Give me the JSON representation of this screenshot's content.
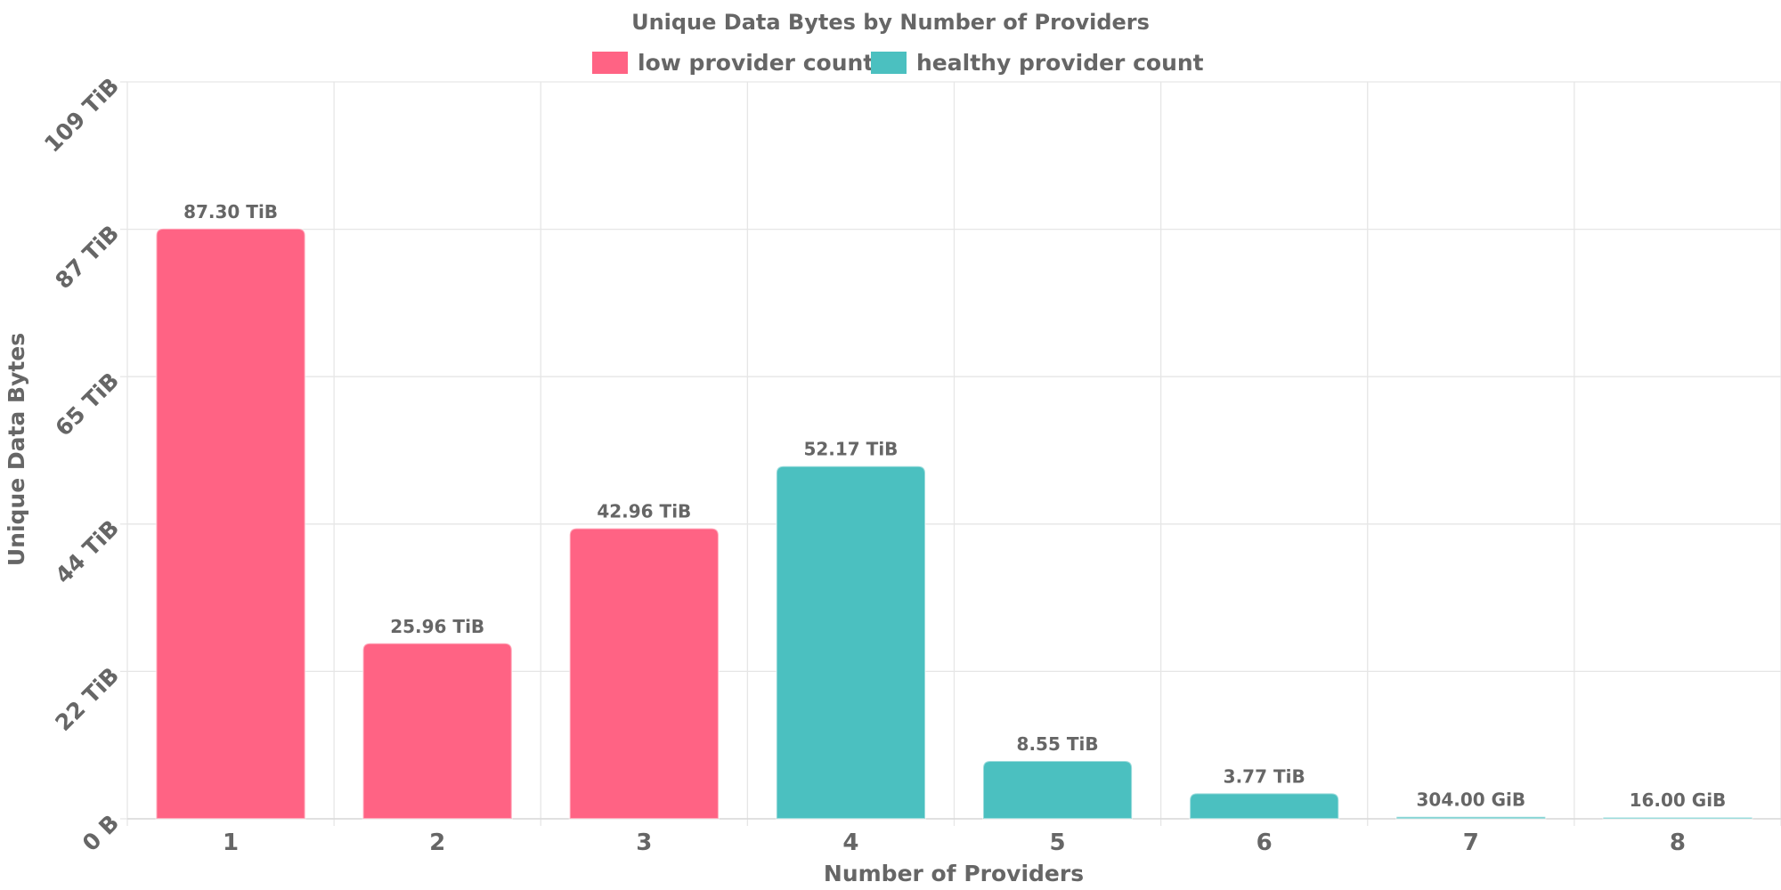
{
  "chart_data": {
    "type": "bar",
    "title": "Unique Data Bytes by Number of Providers",
    "xlabel": "Number of Providers",
    "ylabel": "Unique Data Bytes",
    "categories": [
      "1",
      "2",
      "3",
      "4",
      "5",
      "6",
      "7",
      "8"
    ],
    "values_tib": [
      87.3,
      25.96,
      42.96,
      52.17,
      8.55,
      3.77,
      0.296875,
      0.015625
    ],
    "value_labels": [
      "87.30 TiB",
      "25.96 TiB",
      "42.96 TiB",
      "52.17 TiB",
      "8.55 TiB",
      "3.77 TiB",
      "304.00 GiB",
      "16.00 GiB"
    ],
    "bar_status": [
      "low",
      "low",
      "low",
      "healthy",
      "healthy",
      "healthy",
      "healthy",
      "healthy"
    ],
    "ylim_tib": [
      0,
      109
    ],
    "yticks_tib": [
      0,
      21.8,
      43.6,
      65.4,
      87.2,
      109
    ],
    "ytick_labels": [
      "0 B",
      "22 TiB",
      "44 TiB",
      "65 TiB",
      "87 TiB",
      "109 TiB"
    ],
    "grid": true,
    "legend_placement": "top-center",
    "legend": [
      {
        "key": "low",
        "label": "low provider count",
        "color": "#ff6384"
      },
      {
        "key": "healthy",
        "label": "healthy provider count",
        "color": "#4bc0c0"
      }
    ]
  }
}
